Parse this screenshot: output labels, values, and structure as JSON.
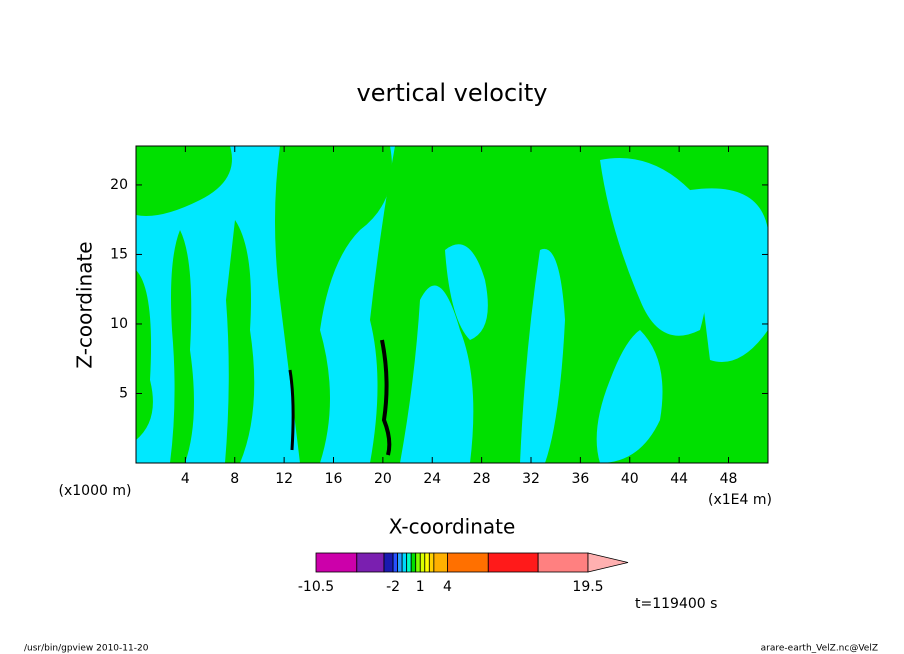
{
  "chart_data": {
    "type": "contour",
    "title": "vertical velocity",
    "x_label": "X-coordinate",
    "y_label": "Z-coordinate",
    "x_unit_label": "(x1000 m)",
    "x_scale_label": "(x1E4 m)",
    "xlim": [
      0,
      51.2
    ],
    "xticks": [
      4,
      8,
      12,
      16,
      20,
      24,
      28,
      32,
      36,
      40,
      44,
      48
    ],
    "ylim": [
      0,
      22.8
    ],
    "yticks": [
      5,
      10,
      15,
      20
    ],
    "colorbar": {
      "levels": [
        -10.5,
        -6,
        -3,
        -2,
        -1.5,
        -1,
        -0.5,
        0,
        0.5,
        1,
        1.5,
        2,
        2.5,
        4,
        8.5,
        14,
        19.5
      ],
      "colors": [
        "#cc00aa",
        "#7a1fb0",
        "#1a1ab0",
        "#2850ff",
        "#28a0ff",
        "#00d8ff",
        "#00ffc8",
        "#00e000",
        "#80ff00",
        "#d8ff00",
        "#ffff00",
        "#ffd000",
        "#ffb000",
        "#ff7000",
        "#ff1a1a",
        "#ff8080"
      ],
      "extend_color": "#ffb0b0",
      "ticks": [
        -10.5,
        -2,
        1,
        4,
        19.5
      ]
    },
    "time_label": "t=119400 s",
    "footer_left": "/usr/bin/gpview  2010-11-20",
    "footer_right": "arare-earth_VelZ.nc@VelZ"
  }
}
